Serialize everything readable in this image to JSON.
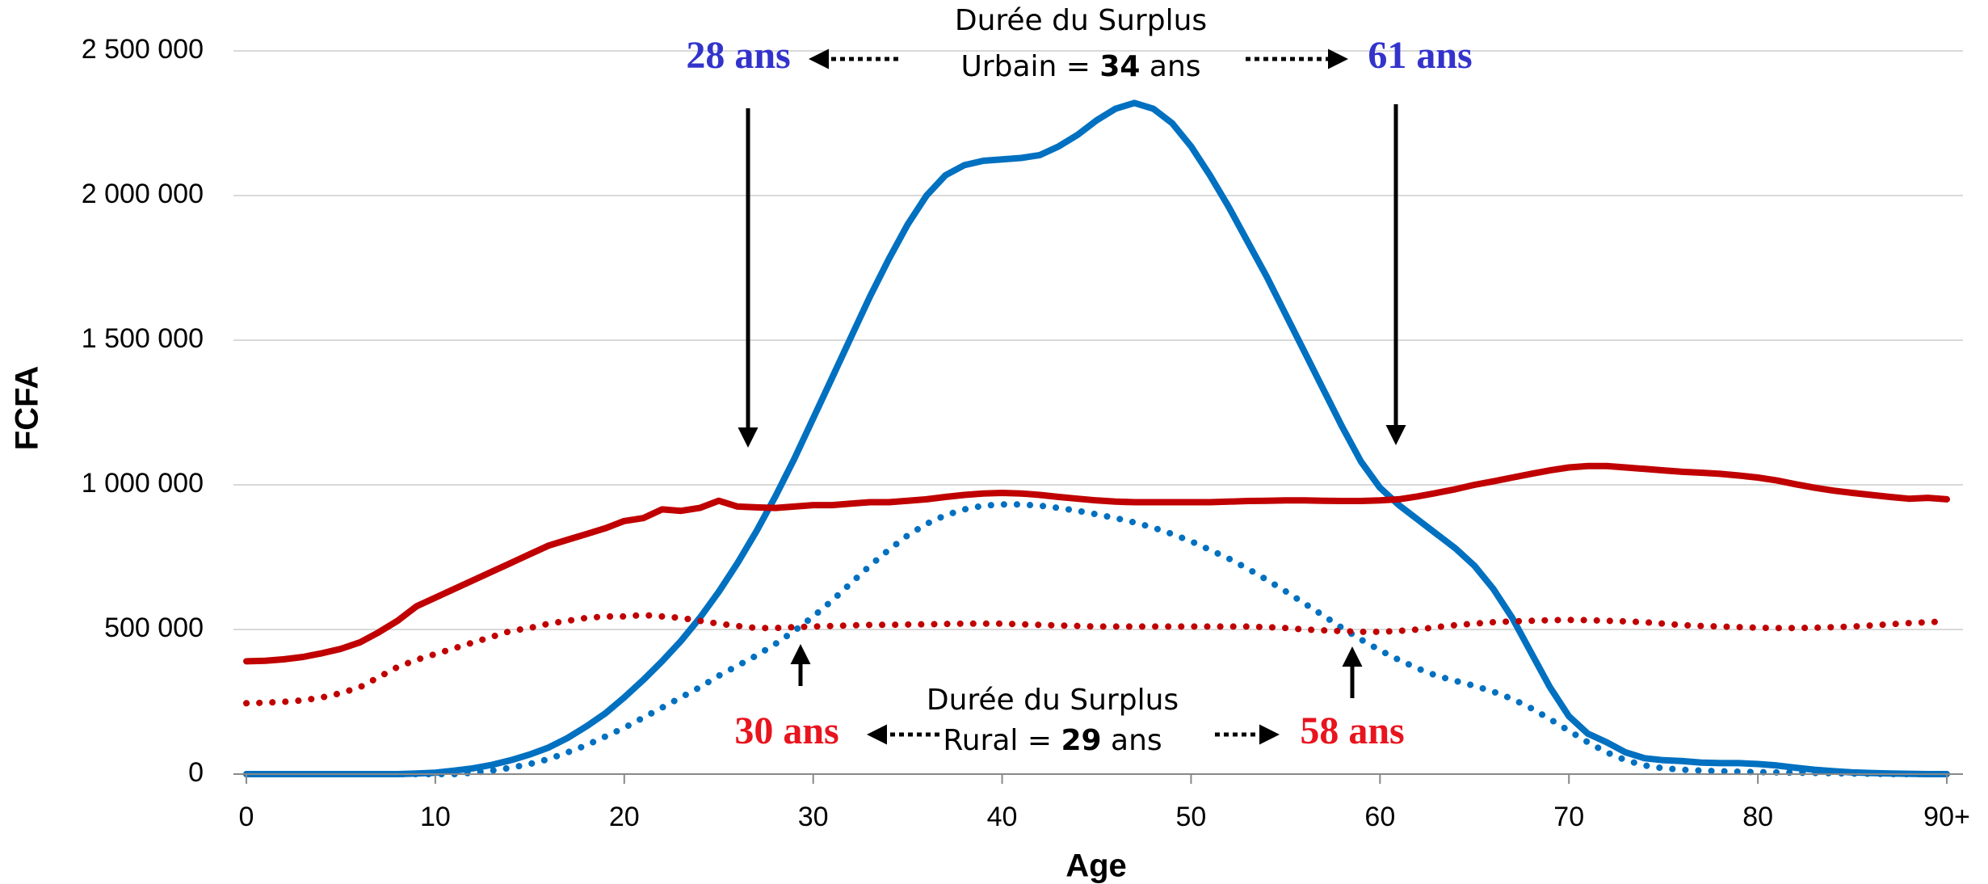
{
  "chart_data": {
    "type": "line",
    "x_label": "Age",
    "y_label": "FCFA",
    "x": [
      0,
      1,
      2,
      3,
      4,
      5,
      6,
      7,
      8,
      9,
      10,
      11,
      12,
      13,
      14,
      15,
      16,
      17,
      18,
      19,
      20,
      21,
      22,
      23,
      24,
      25,
      26,
      27,
      28,
      29,
      30,
      31,
      32,
      33,
      34,
      35,
      36,
      37,
      38,
      39,
      40,
      41,
      42,
      43,
      44,
      45,
      46,
      47,
      48,
      49,
      50,
      51,
      52,
      53,
      54,
      55,
      56,
      57,
      58,
      59,
      60,
      61,
      62,
      63,
      64,
      65,
      66,
      67,
      68,
      69,
      70,
      71,
      72,
      73,
      74,
      75,
      76,
      77,
      78,
      79,
      80,
      81,
      82,
      83,
      84,
      85,
      86,
      87,
      88,
      89,
      90
    ],
    "xlim": [
      0,
      90
    ],
    "xticks": [
      0,
      10,
      20,
      30,
      40,
      50,
      60,
      70,
      80,
      {
        "value": 90,
        "label": "90+"
      }
    ],
    "ylim": [
      0,
      2500000
    ],
    "yticks": [
      0,
      {
        "value": 500000,
        "label": "500 000"
      },
      {
        "value": 1000000,
        "label": "1 000 000"
      },
      {
        "value": 1500000,
        "label": "1 500 000"
      },
      {
        "value": 2000000,
        "label": "2 000 000"
      },
      {
        "value": 2500000,
        "label": "2 500 000"
      }
    ],
    "grid": "y",
    "series": [
      {
        "color": "#0070c0",
        "style": "solid",
        "values": [
          0,
          0,
          0,
          0,
          0,
          0,
          0,
          0,
          0,
          2000,
          5000,
          12000,
          20000,
          32000,
          48000,
          68000,
          92000,
          125000,
          165000,
          210000,
          265000,
          325000,
          390000,
          460000,
          540000,
          630000,
          730000,
          840000,
          960000,
          1090000,
          1230000,
          1370000,
          1510000,
          1650000,
          1780000,
          1900000,
          2000000,
          2070000,
          2105000,
          2120000,
          2125000,
          2130000,
          2140000,
          2170000,
          2210000,
          2260000,
          2300000,
          2320000,
          2300000,
          2250000,
          2170000,
          2070000,
          1960000,
          1840000,
          1720000,
          1590000,
          1460000,
          1330000,
          1200000,
          1080000,
          990000,
          930000,
          880000,
          830000,
          780000,
          720000,
          640000,
          540000,
          420000,
          300000,
          200000,
          140000,
          110000,
          75000,
          55000,
          48000,
          45000,
          40000,
          38000,
          38000,
          35000,
          30000,
          22000,
          15000,
          10000,
          6000,
          4000,
          2000,
          1000,
          0,
          0
        ]
      },
      {
        "color": "#c00000",
        "style": "solid",
        "values": [
          390000,
          392000,
          397000,
          405000,
          418000,
          433000,
          455000,
          490000,
          530000,
          580000,
          610000,
          640000,
          670000,
          700000,
          730000,
          760000,
          790000,
          810000,
          830000,
          850000,
          875000,
          885000,
          915000,
          910000,
          920000,
          945000,
          925000,
          922000,
          920000,
          925000,
          930000,
          930000,
          935000,
          940000,
          940000,
          945000,
          950000,
          958000,
          965000,
          970000,
          972000,
          970000,
          965000,
          958000,
          952000,
          946000,
          942000,
          940000,
          940000,
          940000,
          940000,
          940000,
          942000,
          944000,
          945000,
          946000,
          946000,
          945000,
          944000,
          944000,
          946000,
          950000,
          960000,
          972000,
          985000,
          1000000,
          1012000,
          1025000,
          1038000,
          1050000,
          1060000,
          1065000,
          1065000,
          1060000,
          1055000,
          1050000,
          1045000,
          1042000,
          1038000,
          1032000,
          1025000,
          1015000,
          1002000,
          990000,
          980000,
          972000,
          965000,
          958000,
          952000,
          955000,
          950000
        ]
      },
      {
        "color": "#0070c0",
        "style": "dotted",
        "values": [
          0,
          0,
          0,
          0,
          0,
          0,
          0,
          0,
          0,
          0,
          0,
          0,
          5000,
          12000,
          22000,
          35000,
          52000,
          75000,
          100000,
          130000,
          160000,
          195000,
          230000,
          265000,
          300000,
          340000,
          375000,
          410000,
          450000,
          495000,
          545000,
          600000,
          660000,
          720000,
          775000,
          825000,
          865000,
          895000,
          915000,
          928000,
          932000,
          932000,
          928000,
          920000,
          910000,
          898000,
          885000,
          870000,
          852000,
          830000,
          805000,
          775000,
          745000,
          710000,
          672000,
          632000,
          590000,
          548000,
          505000,
          465000,
          428000,
          395000,
          365000,
          340000,
          322000,
          305000,
          285000,
          260000,
          228000,
          190000,
          150000,
          110000,
          75000,
          48000,
          30000,
          20000,
          15000,
          12000,
          10000,
          8000,
          7000,
          6000,
          5000,
          4000,
          3000,
          2000,
          1000,
          0,
          0,
          0,
          0
        ]
      },
      {
        "color": "#c00000",
        "style": "dotted",
        "values": [
          245000,
          247000,
          250000,
          255000,
          265000,
          280000,
          300000,
          335000,
          370000,
          395000,
          415000,
          435000,
          455000,
          475000,
          495000,
          505000,
          520000,
          530000,
          540000,
          545000,
          545000,
          550000,
          545000,
          540000,
          530000,
          520000,
          512000,
          505000,
          505000,
          508000,
          510000,
          512000,
          514000,
          516000,
          516000,
          517000,
          518000,
          519000,
          520000,
          520000,
          520000,
          518000,
          516000,
          514000,
          512000,
          510000,
          510000,
          510000,
          510000,
          510000,
          510000,
          510000,
          510000,
          510000,
          508000,
          505000,
          500000,
          497000,
          494000,
          492000,
          492000,
          495000,
          500000,
          508000,
          515000,
          520000,
          525000,
          528000,
          530000,
          532000,
          533000,
          532000,
          530000,
          528000,
          525000,
          520000,
          515000,
          512000,
          510000,
          508000,
          506000,
          505000,
          505000,
          506000,
          508000,
          510000,
          514000,
          518000,
          522000,
          525000,
          528000
        ]
      }
    ],
    "annotations": {
      "urban": {
        "title": "Durée du Surplus",
        "prefix": "Urbain = ",
        "years": 34,
        "suffix": " ans",
        "start": "28 ans",
        "end": "61 ans",
        "color": "#3333cc"
      },
      "rural": {
        "title": "Durée du Surplus",
        "prefix": "Rural = ",
        "years": 29,
        "suffix": " ans",
        "start": "30 ans",
        "end": "58 ans",
        "color": "#e8141e"
      }
    }
  }
}
